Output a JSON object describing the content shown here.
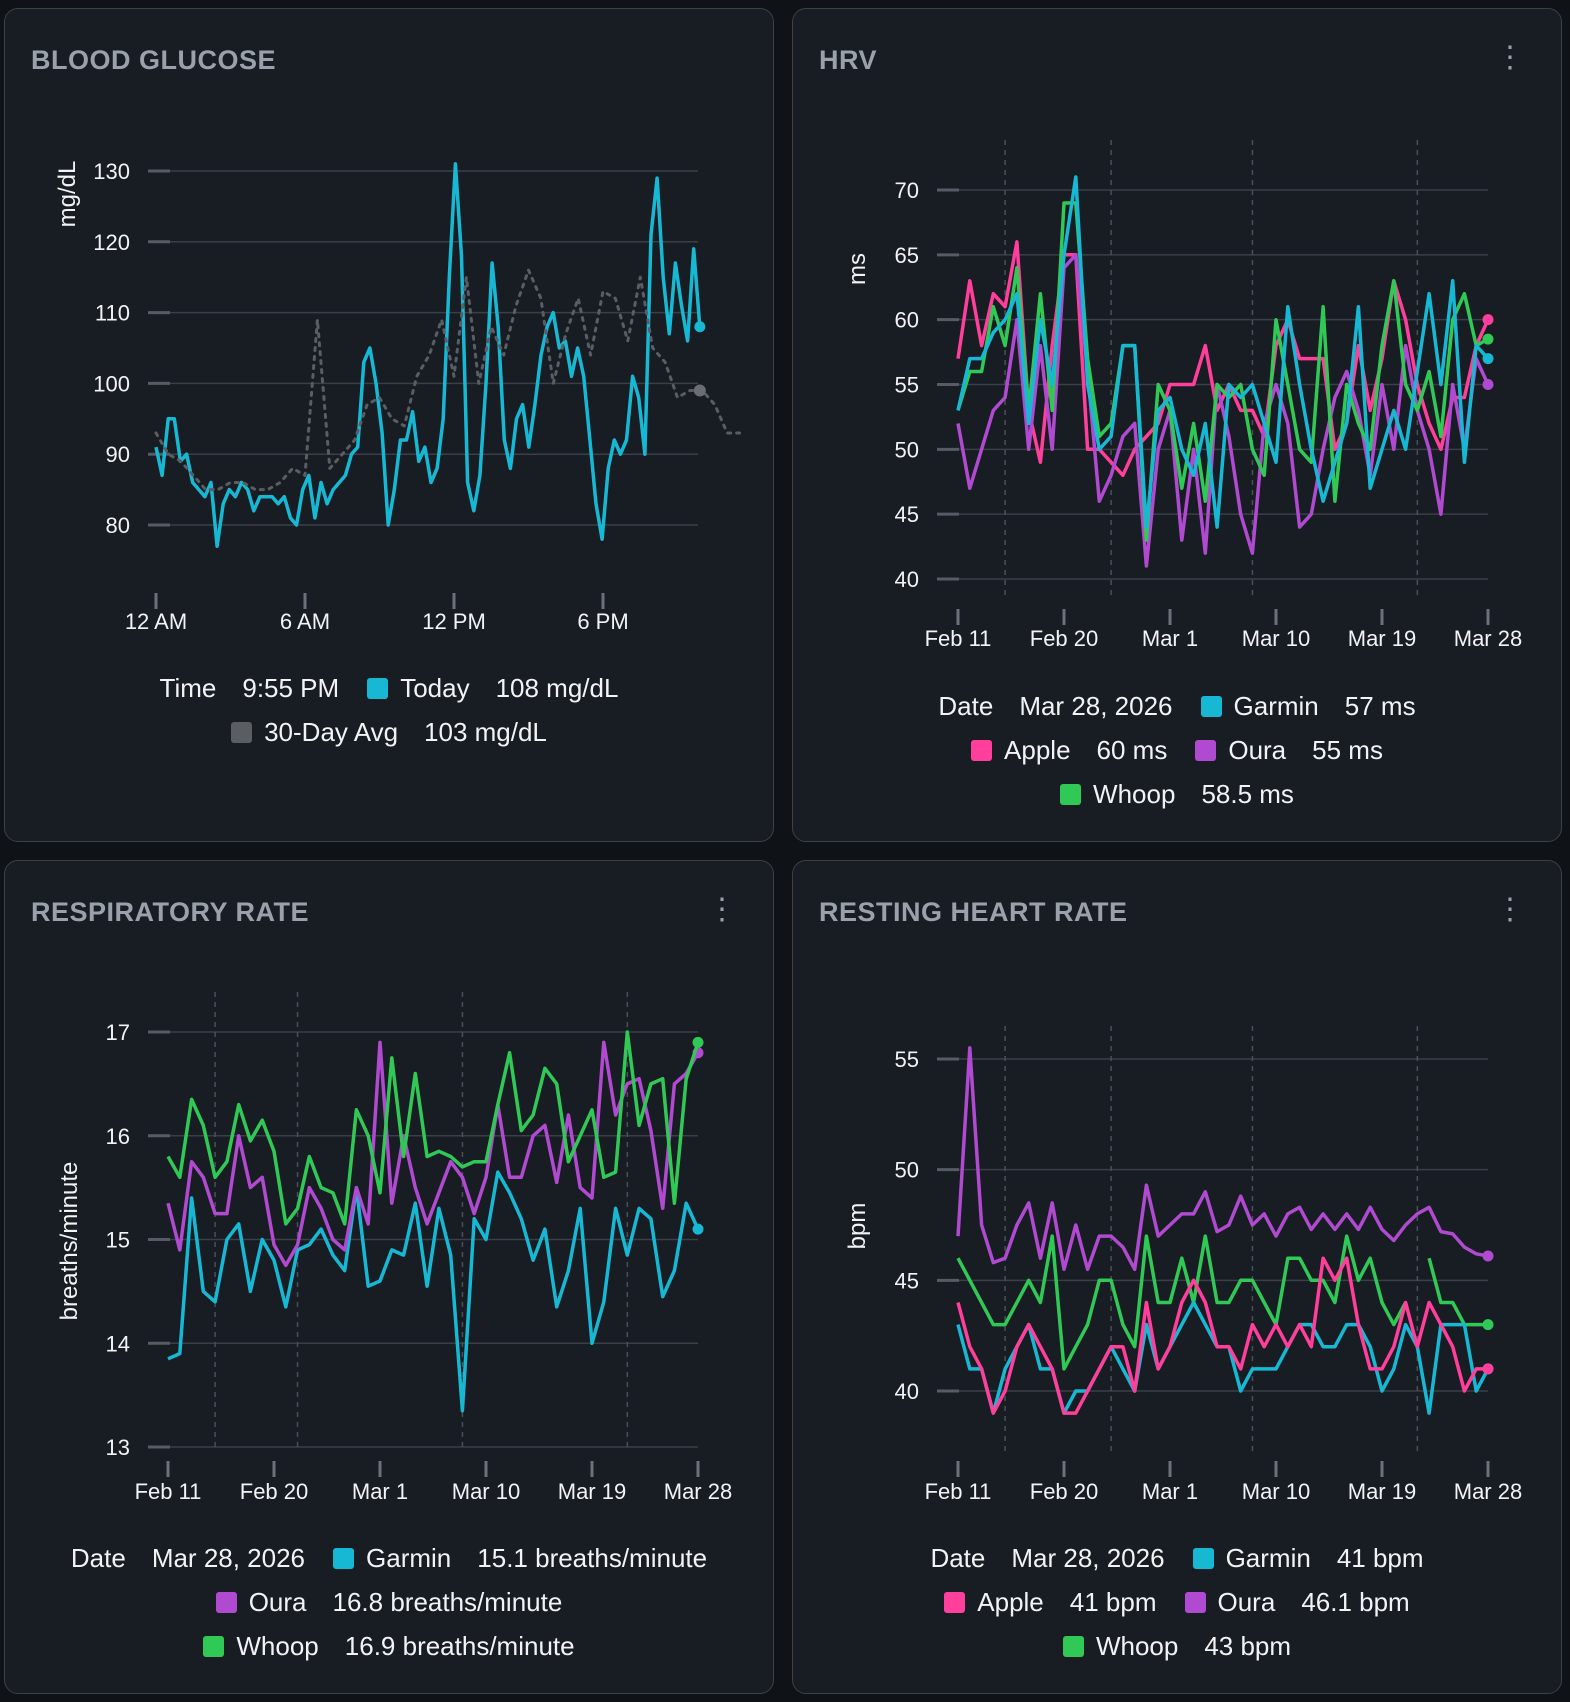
{
  "colors": {
    "garmin": "#17b8d4",
    "apple": "#ff3f9b",
    "oura": "#b04ad0",
    "whoop": "#30c956",
    "today": "#17b8d4",
    "avg": "#5a5d62",
    "grid": "#3a3f48"
  },
  "panels": [
    {
      "title": "BLOOD GLUCOSE",
      "legend": {
        "rows": [
          [
            {
              "label": "Time",
              "value": "9:55 PM"
            },
            {
              "swatch": "today",
              "label": "Today",
              "value": "108 mg/dL"
            }
          ],
          [
            {
              "swatch": "avg",
              "label": "30-Day Avg",
              "value": "103 mg/dL"
            }
          ]
        ]
      }
    },
    {
      "title": "HRV",
      "menu": "more-vert-icon",
      "legend": {
        "rows": [
          [
            {
              "label": "Date",
              "value": "Mar 28, 2026"
            },
            {
              "swatch": "garmin",
              "label": "Garmin",
              "value": "57 ms"
            }
          ],
          [
            {
              "swatch": "apple",
              "label": "Apple",
              "value": "60 ms"
            },
            {
              "swatch": "oura",
              "label": "Oura",
              "value": "55 ms"
            }
          ],
          [
            {
              "swatch": "whoop",
              "label": "Whoop",
              "value": "58.5 ms"
            }
          ]
        ]
      }
    },
    {
      "title": "RESPIRATORY RATE",
      "menu": "more-vert-icon",
      "legend": {
        "rows": [
          [
            {
              "label": "Date",
              "value": "Mar 28, 2026"
            },
            {
              "swatch": "garmin",
              "label": "Garmin",
              "value": "15.1 breaths/minute"
            }
          ],
          [
            {
              "swatch": "oura",
              "label": "Oura",
              "value": "16.8 breaths/minute"
            }
          ],
          [
            {
              "swatch": "whoop",
              "label": "Whoop",
              "value": "16.9 breaths/minute"
            }
          ]
        ]
      }
    },
    {
      "title": "RESTING HEART RATE",
      "menu": "more-vert-icon",
      "legend": {
        "rows": [
          [
            {
              "label": "Date",
              "value": "Mar 28, 2026"
            },
            {
              "swatch": "garmin",
              "label": "Garmin",
              "value": "41 bpm"
            }
          ],
          [
            {
              "swatch": "apple",
              "label": "Apple",
              "value": "41 bpm"
            },
            {
              "swatch": "oura",
              "label": "Oura",
              "value": "46.1 bpm"
            }
          ],
          [
            {
              "swatch": "whoop",
              "label": "Whoop",
              "value": "43 bpm"
            }
          ]
        ]
      }
    }
  ],
  "chart_data": [
    {
      "type": "line",
      "ylabel": "mg/dL",
      "ylim": [
        70,
        130
      ],
      "yticks": [
        80,
        90,
        100,
        110,
        120,
        130
      ],
      "xticks": [
        {
          "h": 0,
          "label": "12 AM"
        },
        {
          "h": 6,
          "label": "6 AM"
        },
        {
          "h": 12,
          "label": "12 PM"
        },
        {
          "h": 18,
          "label": "6 PM"
        }
      ],
      "x_unit": "hours",
      "xlim": [
        0,
        23.9
      ],
      "grid": "horizontal",
      "series": [
        {
          "name": "Today",
          "color": "today",
          "style": "solid",
          "x_step_hours": 0.25,
          "end_marker": true,
          "values": [
            91,
            87,
            95,
            95,
            89,
            90,
            86,
            85,
            84,
            86,
            77,
            83,
            85,
            84,
            86,
            85,
            82,
            84,
            84,
            84,
            83,
            84,
            81,
            80,
            85,
            87,
            81,
            86,
            83,
            85,
            86,
            87,
            90,
            91,
            103,
            105,
            100,
            93,
            80,
            85,
            92,
            92,
            96,
            89,
            91,
            86,
            88,
            95,
            115,
            131,
            118,
            86,
            82,
            87,
            100,
            117,
            108,
            92,
            88,
            95,
            97,
            91,
            97,
            104,
            108,
            110,
            105,
            106,
            101,
            105,
            101,
            92,
            83,
            78,
            88,
            92,
            90,
            92,
            101,
            98,
            90,
            121,
            129,
            115,
            107,
            117,
            111,
            106,
            119,
            108
          ]
        },
        {
          "name": "30-Day Avg",
          "color": "avg",
          "style": "dotted",
          "x_step_hours": 0.5,
          "marker_at_hours": 21.9,
          "values": [
            93,
            90,
            89,
            87,
            85,
            85,
            86,
            86,
            85,
            85,
            86,
            88,
            87,
            109,
            88,
            90,
            92,
            97,
            98,
            95,
            94,
            101,
            104,
            109,
            101,
            115,
            100,
            108,
            104,
            111,
            116,
            112,
            100,
            107,
            112,
            104,
            113,
            112,
            106,
            115,
            105,
            103,
            98,
            99,
            99,
            97,
            93,
            93
          ]
        }
      ]
    },
    {
      "type": "line",
      "ylabel": "ms",
      "ylim": [
        38,
        72
      ],
      "yticks": [
        40,
        45,
        50,
        55,
        60,
        65,
        70
      ],
      "xticks": [
        "Feb 11",
        "Feb 20",
        "Mar 1",
        "Mar 10",
        "Mar 19",
        "Mar 28"
      ],
      "interval": "daily",
      "x_range": [
        "Feb 11",
        "Mar 28"
      ],
      "markers": [
        "Feb 15",
        "Feb 24",
        "Mar 8",
        "Mar 22"
      ],
      "grid": "horizontal",
      "series": [
        {
          "name": "Apple",
          "color": "apple",
          "values": [
            57,
            63,
            58,
            62,
            61,
            66,
            53,
            49,
            58,
            65,
            65,
            50,
            50,
            49,
            48,
            50,
            51,
            52,
            55,
            55,
            55,
            58,
            53,
            55,
            53,
            53,
            51,
            58,
            60,
            57,
            57,
            57,
            50,
            52,
            58,
            53,
            57,
            63,
            60,
            55,
            52,
            50,
            54,
            54,
            58,
            60
          ]
        },
        {
          "name": "Oura",
          "color": "oura",
          "values": [
            52,
            47,
            50,
            53,
            54,
            60,
            50,
            58,
            50,
            64,
            65,
            56,
            46,
            48,
            51,
            52,
            41,
            50,
            53,
            43,
            50,
            42,
            55,
            51,
            45,
            42,
            52,
            55,
            52,
            44,
            45,
            50,
            54,
            56,
            53,
            48,
            55,
            50,
            58,
            53,
            50,
            45,
            55,
            50,
            57,
            55
          ]
        },
        {
          "name": "Whoop",
          "color": "whoop",
          "values": [
            53,
            56,
            56,
            61,
            58,
            64,
            53,
            62,
            53,
            69,
            69,
            57,
            51,
            52,
            58,
            58,
            43,
            55,
            53,
            47,
            52,
            46,
            55,
            54,
            55,
            50,
            48,
            60,
            55,
            50,
            49,
            61,
            46,
            55,
            52,
            50,
            58,
            63,
            55,
            53,
            56,
            51,
            60,
            62,
            58,
            58.5
          ]
        },
        {
          "name": "Garmin",
          "color": "garmin",
          "values": [
            53,
            57,
            57,
            59,
            60,
            62,
            52,
            60,
            55,
            65,
            71,
            55,
            50,
            51,
            58,
            58,
            44,
            53,
            54,
            50,
            48,
            52,
            44,
            55,
            54,
            55,
            52,
            49,
            61,
            55,
            50,
            46,
            49,
            52,
            61,
            47,
            50,
            53,
            50,
            56,
            62,
            55,
            63,
            49,
            58,
            57
          ]
        }
      ]
    },
    {
      "type": "line",
      "ylabel": "breaths/minute",
      "ylim": [
        12.9,
        17.2
      ],
      "yticks": [
        13,
        14,
        15,
        16,
        17
      ],
      "xticks": [
        "Feb 11",
        "Feb 20",
        "Mar 1",
        "Mar 10",
        "Mar 19",
        "Mar 28"
      ],
      "interval": "daily",
      "x_range": [
        "Feb 11",
        "Mar 28"
      ],
      "markers": [
        "Feb 15",
        "Feb 22",
        "Mar 8",
        "Mar 22"
      ],
      "grid": "horizontal",
      "series": [
        {
          "name": "Garmin",
          "color": "garmin",
          "values": [
            13.85,
            13.9,
            15.4,
            14.5,
            14.4,
            15.0,
            15.15,
            14.5,
            15.0,
            14.8,
            14.35,
            14.9,
            14.95,
            15.1,
            14.85,
            14.7,
            15.5,
            14.55,
            14.6,
            14.9,
            14.85,
            15.35,
            14.55,
            15.3,
            14.85,
            13.35,
            15.2,
            15.0,
            15.65,
            15.45,
            15.2,
            14.8,
            15.1,
            14.35,
            14.7,
            15.3,
            14.0,
            14.4,
            15.3,
            14.85,
            15.3,
            15.2,
            14.45,
            14.7,
            15.35,
            15.1
          ]
        },
        {
          "name": "Oura",
          "color": "oura",
          "values": [
            15.35,
            14.9,
            15.75,
            15.6,
            15.25,
            15.25,
            16.0,
            15.5,
            15.6,
            14.95,
            14.75,
            14.95,
            15.5,
            15.3,
            15.0,
            14.9,
            15.5,
            15.15,
            16.9,
            15.35,
            16.0,
            15.5,
            15.15,
            15.45,
            15.75,
            15.6,
            15.25,
            15.6,
            16.3,
            15.6,
            15.6,
            16.0,
            16.1,
            15.55,
            16.2,
            15.5,
            15.4,
            16.9,
            16.2,
            16.5,
            16.55,
            16.05,
            15.3,
            16.5,
            16.6,
            16.8
          ]
        },
        {
          "name": "Whoop",
          "color": "whoop",
          "values": [
            15.8,
            15.6,
            16.35,
            16.1,
            15.6,
            15.75,
            16.3,
            15.95,
            16.15,
            15.85,
            15.15,
            15.3,
            15.8,
            15.5,
            15.45,
            15.15,
            16.25,
            16.0,
            15.45,
            16.75,
            15.8,
            16.6,
            15.8,
            15.85,
            15.8,
            15.7,
            15.75,
            15.75,
            16.3,
            16.8,
            16.05,
            16.2,
            16.65,
            16.5,
            15.75,
            16.0,
            16.25,
            15.6,
            15.65,
            17.0,
            16.1,
            16.5,
            16.55,
            15.35,
            16.55,
            16.9
          ]
        }
      ]
    },
    {
      "type": "line",
      "ylabel": "bpm",
      "ylim": [
        38,
        56
      ],
      "yticks": [
        40,
        45,
        50,
        55
      ],
      "xticks": [
        "Feb 11",
        "Feb 20",
        "Mar 1",
        "Mar 10",
        "Mar 19",
        "Mar 28"
      ],
      "interval": "daily",
      "x_range": [
        "Feb 11",
        "Mar 28"
      ],
      "markers": [
        "Feb 15",
        "Feb 24",
        "Mar 8",
        "Mar 22"
      ],
      "grid": "horizontal",
      "series": [
        {
          "name": "Oura",
          "color": "oura",
          "values": [
            47,
            55.5,
            47.5,
            45.8,
            46,
            47.5,
            48.5,
            46,
            48.5,
            45.5,
            47.5,
            45.5,
            47,
            47,
            46.5,
            45.5,
            49.3,
            47,
            47.5,
            48,
            48,
            49,
            47.2,
            47.5,
            48.8,
            47.5,
            48,
            47,
            48,
            48.3,
            47.3,
            48,
            47.3,
            48,
            47.3,
            48.3,
            47.3,
            46.8,
            47.5,
            48,
            48.3,
            47.2,
            47.1,
            46.5,
            46.2,
            46.1
          ]
        },
        {
          "name": "Whoop",
          "color": "whoop",
          "values": [
            46,
            45,
            44,
            43,
            43,
            44,
            45,
            44,
            47,
            41,
            42,
            43,
            45,
            45,
            43,
            42,
            47,
            44,
            44,
            46,
            44,
            47,
            44,
            44,
            45,
            45,
            44,
            43,
            46,
            46,
            45,
            45,
            44,
            47,
            45,
            46,
            44,
            43,
            44,
            null,
            46,
            44,
            44,
            43,
            43,
            43
          ]
        },
        {
          "name": "Garmin",
          "color": "garmin",
          "values": [
            43,
            41,
            41,
            39,
            41,
            42,
            43,
            41,
            41,
            39,
            40,
            40,
            41,
            42,
            41,
            40,
            43,
            41,
            42,
            43,
            44,
            43,
            42,
            42,
            40,
            41,
            41,
            41,
            42,
            43,
            43,
            42,
            42,
            43,
            43,
            42,
            40,
            41,
            43,
            42,
            39,
            43,
            43,
            43,
            40,
            41
          ]
        },
        {
          "name": "Apple",
          "color": "apple",
          "values": [
            44,
            42,
            41,
            39,
            40,
            42,
            43,
            42,
            41,
            39,
            39,
            40,
            41,
            42,
            42,
            40,
            44,
            41,
            42,
            44,
            45,
            44,
            42,
            42,
            41,
            43,
            42,
            43,
            42,
            43,
            42,
            46,
            45,
            46,
            43,
            41,
            41,
            42,
            44,
            42,
            44,
            43,
            42,
            40,
            41,
            41
          ]
        }
      ]
    }
  ]
}
